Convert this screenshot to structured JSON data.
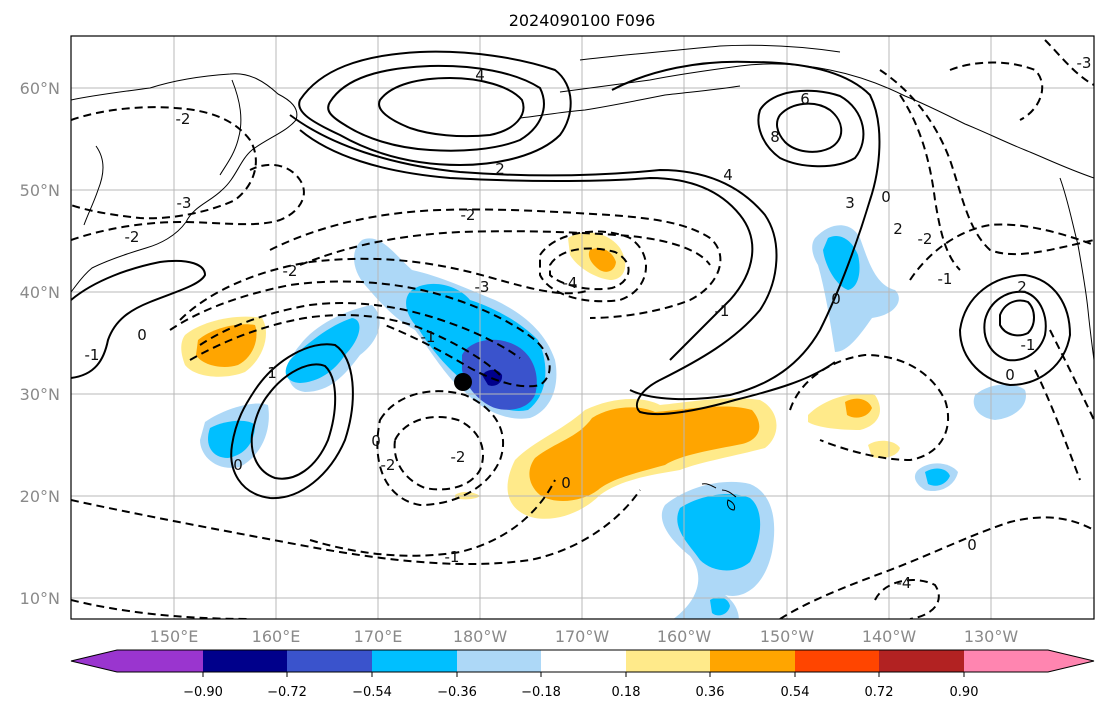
{
  "title": "2024090100 F096",
  "map": {
    "lat_labels": [
      "60°N",
      "50°N",
      "40°N",
      "30°N",
      "20°N",
      "10°N"
    ],
    "lon_labels": [
      "150°E",
      "160°E",
      "170°E",
      "180°W",
      "170°W",
      "160°W",
      "150°W",
      "140°W",
      "130°W"
    ]
  },
  "contour_labels": [
    {
      "text": "4"
    },
    {
      "text": "6"
    },
    {
      "text": "8"
    },
    {
      "text": "2"
    },
    {
      "text": "4"
    },
    {
      "text": "-2"
    },
    {
      "text": "-3"
    },
    {
      "text": "-2"
    },
    {
      "text": "-2"
    },
    {
      "text": "-2"
    },
    {
      "text": "-3"
    },
    {
      "text": "-4"
    },
    {
      "text": "-1"
    },
    {
      "text": "0"
    },
    {
      "text": "-1"
    },
    {
      "text": "1"
    },
    {
      "text": "0"
    },
    {
      "text": "0"
    },
    {
      "text": "-2"
    },
    {
      "text": "-2"
    },
    {
      "text": "-1"
    },
    {
      "text": "0"
    },
    {
      "text": "-1"
    },
    {
      "text": "0"
    },
    {
      "text": "2"
    },
    {
      "text": "-1"
    },
    {
      "text": "0"
    },
    {
      "text": "-2"
    },
    {
      "text": "-1"
    },
    {
      "text": "0"
    },
    {
      "text": "3"
    },
    {
      "text": "0"
    },
    {
      "text": "2"
    },
    {
      "text": "-3"
    },
    {
      "text": "-4"
    }
  ],
  "colorbar": {
    "labels": [
      "−0.90",
      "−0.72",
      "−0.54",
      "−0.36",
      "−0.18",
      "0.18",
      "0.36",
      "0.54",
      "0.72",
      "0.90"
    ],
    "colors": [
      "#9a35cf",
      "#00008b",
      "#3a53cc",
      "#00bfff",
      "#add8f7",
      "#ffffff",
      "#ffea8a",
      "#ffa500",
      "#ff4500",
      "#b22222",
      "#ff85b0"
    ]
  },
  "colors": {
    "light_blue": "#add8f7",
    "blue": "#00bfff",
    "dark_blue": "#3a53cc",
    "navy": "#00008b",
    "light_yellow": "#ffea8a",
    "orange": "#ffa500"
  }
}
